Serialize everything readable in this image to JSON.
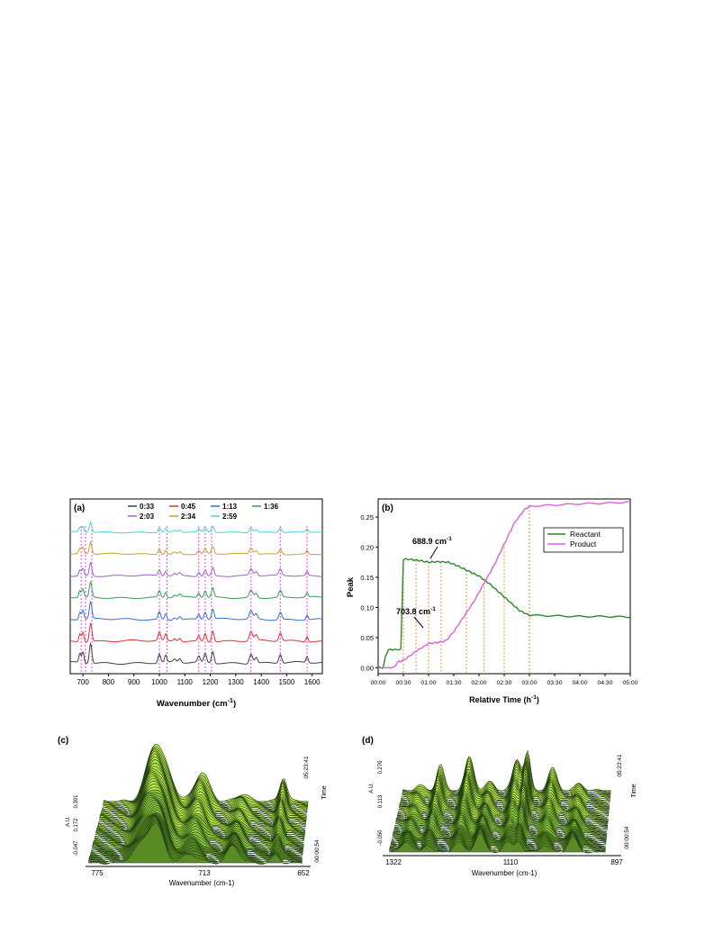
{
  "panels": {
    "a": {
      "label": "(a)",
      "xlabel": "Wavenumber (cm",
      "xlabel_sup": "-1",
      "xlabel_close": ")"
    },
    "b": {
      "label": "(b)",
      "xlabel": "Relative Time (h",
      "xlabel_sup": "-1",
      "xlabel_close": ")",
      "ylabel": "Peak",
      "annot1": "688.9 cm",
      "annot1_sup": "-1",
      "annot2": "703.8 cm",
      "annot2_sup": "-1"
    },
    "c": {
      "label": "(c)",
      "xlabel": "Wavenumber (cm-1)",
      "ylabel": "A.U.",
      "zlabel": "Time",
      "ticks_x": [
        "775",
        "713",
        "652"
      ],
      "ticks_y": [
        "-0.047",
        "0.172",
        "0.391"
      ],
      "ticks_t": [
        "00:00:54",
        "05:23:41"
      ]
    },
    "d": {
      "label": "(d)",
      "xlabel": "Wavenumber (cm-1)",
      "ylabel": "A.U.",
      "zlabel": "Time",
      "ticks_x": [
        "1322",
        "1110",
        "897"
      ],
      "ticks_y": [
        "-0.050",
        "0.113",
        "0.276"
      ],
      "ticks_t": [
        "00:00:54",
        "05:23:41"
      ]
    }
  },
  "colors": {
    "grid_line": "#ee44ee",
    "guide_line": "#f09020",
    "mesh_light": "#b8e84a",
    "mesh_dark": "#1e3a10"
  },
  "chart_data": [
    {
      "type": "line",
      "panel": "a",
      "xlim": [
        650,
        1640
      ],
      "xticks": [
        700,
        800,
        900,
        1000,
        1100,
        1200,
        1300,
        1400,
        1500,
        1600
      ],
      "legend": "top",
      "series": [
        {
          "name": "0:33",
          "color": "#404040"
        },
        {
          "name": "0:45",
          "color": "#e03030"
        },
        {
          "name": "1:13",
          "color": "#3070d8"
        },
        {
          "name": "1:36",
          "color": "#30a050"
        },
        {
          "name": "2:03",
          "color": "#a060d0"
        },
        {
          "name": "2:34",
          "color": "#c8a030"
        },
        {
          "name": "2:59",
          "color": "#40d8d0"
        }
      ],
      "peaks": [
        {
          "x": 688,
          "h": 0.45,
          "w": 6
        },
        {
          "x": 700,
          "h": 0.55,
          "w": 6
        },
        {
          "x": 730,
          "h": 1.0,
          "w": 7
        },
        {
          "x": 1000,
          "h": 0.45,
          "w": 7
        },
        {
          "x": 1025,
          "h": 0.35,
          "w": 6
        },
        {
          "x": 1060,
          "h": 0.15,
          "w": 8
        },
        {
          "x": 1080,
          "h": 0.2,
          "w": 8
        },
        {
          "x": 1155,
          "h": 0.3,
          "w": 7
        },
        {
          "x": 1180,
          "h": 0.45,
          "w": 7
        },
        {
          "x": 1210,
          "h": 0.6,
          "w": 7
        },
        {
          "x": 1360,
          "h": 0.5,
          "w": 9
        },
        {
          "x": 1380,
          "h": 0.3,
          "w": 8
        },
        {
          "x": 1475,
          "h": 0.45,
          "w": 8
        },
        {
          "x": 1580,
          "h": 0.3,
          "w": 6
        }
      ],
      "guide_lines": [
        693,
        710,
        735,
        1000,
        1030,
        1155,
        1180,
        1205,
        1360,
        1475,
        1580
      ]
    },
    {
      "type": "line",
      "panel": "b",
      "xlim": [
        0,
        5
      ],
      "ylim": [
        -0.01,
        0.28
      ],
      "xticks": [
        "00:00",
        "00:30",
        "01:00",
        "01:30",
        "02:00",
        "02:30",
        "03:00",
        "03:30",
        "04:00",
        "04:30",
        "05:00"
      ],
      "yticks": [
        0.0,
        0.05,
        0.1,
        0.15,
        0.2,
        0.25
      ],
      "ytick_labels": [
        "0.00",
        "0.05",
        "0.10",
        "0.15",
        "0.20",
        "0.25"
      ],
      "legend": "top-right",
      "series": [
        {
          "name": "Reactant",
          "color": "#2a8a2a",
          "points": [
            [
              0,
              0.0
            ],
            [
              0.1,
              0.0
            ],
            [
              0.15,
              0.02
            ],
            [
              0.2,
              0.03
            ],
            [
              0.45,
              0.03
            ],
            [
              0.5,
              0.18
            ],
            [
              0.6,
              0.18
            ],
            [
              0.8,
              0.178
            ],
            [
              1.0,
              0.175
            ],
            [
              1.2,
              0.176
            ],
            [
              1.4,
              0.175
            ],
            [
              1.6,
              0.168
            ],
            [
              1.8,
              0.16
            ],
            [
              2.0,
              0.152
            ],
            [
              2.2,
              0.14
            ],
            [
              2.4,
              0.125
            ],
            [
              2.6,
              0.11
            ],
            [
              2.8,
              0.095
            ],
            [
              3.0,
              0.087
            ],
            [
              3.5,
              0.086
            ],
            [
              4.0,
              0.085
            ],
            [
              4.5,
              0.085
            ],
            [
              5.0,
              0.084
            ]
          ]
        },
        {
          "name": "Product",
          "color": "#e060d8",
          "points": [
            [
              0,
              0.0
            ],
            [
              0.3,
              0.0
            ],
            [
              0.4,
              0.01
            ],
            [
              0.5,
              0.012
            ],
            [
              0.6,
              0.018
            ],
            [
              0.8,
              0.03
            ],
            [
              1.0,
              0.04
            ],
            [
              1.2,
              0.042
            ],
            [
              1.35,
              0.045
            ],
            [
              1.5,
              0.06
            ],
            [
              1.7,
              0.085
            ],
            [
              1.9,
              0.11
            ],
            [
              2.1,
              0.14
            ],
            [
              2.3,
              0.17
            ],
            [
              2.5,
              0.205
            ],
            [
              2.7,
              0.24
            ],
            [
              2.9,
              0.262
            ],
            [
              3.0,
              0.268
            ],
            [
              3.5,
              0.27
            ],
            [
              4.0,
              0.272
            ],
            [
              4.5,
              0.273
            ],
            [
              5.0,
              0.275
            ]
          ]
        }
      ],
      "guide_times": [
        0.5,
        0.75,
        1.0,
        1.25,
        1.75,
        2.1,
        2.5,
        3.0
      ]
    }
  ]
}
